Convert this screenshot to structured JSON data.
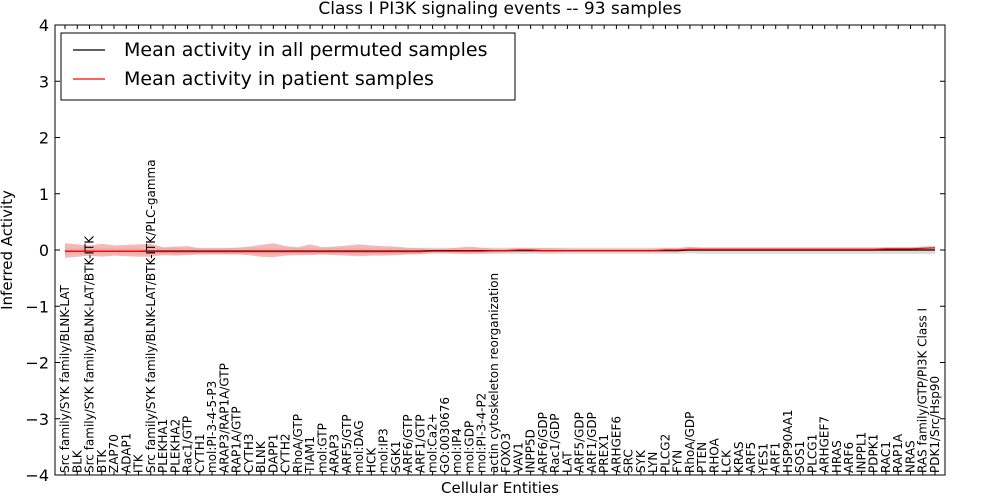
{
  "chart_data": {
    "type": "line",
    "title": "Class I PI3K signaling events -- 93 samples",
    "xlabel": "Cellular Entities",
    "ylabel": "Inferred Activity",
    "ylim": [
      -4,
      4
    ],
    "yticks": [
      -4,
      -3,
      -2,
      -1,
      0,
      1,
      2,
      3,
      4
    ],
    "ytick_labels": [
      "−4",
      "−3",
      "−2",
      "−1",
      "0",
      "1",
      "2",
      "3",
      "4"
    ],
    "grid": false,
    "legend_position": "top-left",
    "categories": [
      "Src family/SYK family/BLNK-LAT",
      "BLK",
      "Src family/SYK family/BLNK-LAT/BTK-ITK",
      "BTK",
      "ZAP70",
      "ADAP1",
      "ITK",
      "Src family/SYK family/BLNK-LAT/BTK-ITK/PLC-gamma",
      "PLEKHA1",
      "PLEKHA2",
      "Rac1/GTP",
      "CYTH1",
      "mol:PI-3-4-5-P3",
      "ARAP3/RAP1A/GTP",
      "RAP1A/GTP",
      "CYTH3",
      "BLNK",
      "DAPP1",
      "CYTH2",
      "RhoA/GTP",
      "TIAM1",
      "mol:GTP",
      "ARAP3",
      "ARF5/GTP",
      "mol:DAG",
      "HCK",
      "mol:IP3",
      "SGK1",
      "ARF6/GTP",
      "ARF1/GTP",
      "mol:Ca2+",
      "GO:0030676",
      "mol:IP4",
      "mol:GDP",
      "mol:PI-3-4-P2",
      "actin cytoskeleton reorganization",
      "FOXO3",
      "VAV1",
      "INPP5D",
      "ARF6/GDP",
      "Rac1/GDP",
      "LAT",
      "ARF5/GDP",
      "ARF1/GDP",
      "PREX1",
      "ARHGEF6",
      "SRC",
      "SYK",
      "LYN",
      "PLCG2",
      "FYN",
      "RhoA/GDP",
      "PTEN",
      "RHOA",
      "LCK",
      "KRAS",
      "ARF5",
      "YES1",
      "ARF1",
      "HSP90AA1",
      "SOS1",
      "PLCG1",
      "ARHGEF7",
      "HRAS",
      "ARF6",
      "INPPL1",
      "PDPK1",
      "RAC1",
      "RAP1A",
      "NRAS",
      "RAS family/GTP/PI3K Class I",
      "PDK1/Src/Hsp90"
    ],
    "series": [
      {
        "name": "Mean activity in all permuted samples",
        "color": "#000000",
        "band_color": "#d3d3d3",
        "values": [
          -0.02,
          -0.02,
          -0.02,
          -0.02,
          -0.02,
          -0.02,
          -0.02,
          -0.02,
          -0.02,
          -0.02,
          -0.02,
          -0.02,
          -0.02,
          -0.02,
          -0.02,
          -0.02,
          -0.02,
          -0.02,
          -0.02,
          -0.02,
          -0.02,
          -0.02,
          -0.02,
          -0.02,
          -0.02,
          -0.02,
          -0.02,
          -0.02,
          -0.02,
          -0.02,
          -0.01,
          -0.01,
          -0.01,
          -0.01,
          -0.01,
          -0.01,
          -0.01,
          -0.01,
          -0.01,
          -0.01,
          -0.01,
          -0.01,
          -0.01,
          -0.01,
          -0.01,
          -0.01,
          -0.01,
          -0.01,
          -0.01,
          -0.01,
          -0.01,
          0.0,
          0.0,
          0.0,
          0.0,
          0.0,
          0.0,
          0.0,
          0.0,
          0.0,
          0.0,
          0.0,
          0.0,
          0.0,
          0.0,
          0.0,
          0.0,
          0.0,
          0.0,
          0.0,
          0.0,
          0.0
        ],
        "lower": [
          -0.08,
          -0.08,
          -0.08,
          -0.08,
          -0.08,
          -0.08,
          -0.08,
          -0.08,
          -0.08,
          -0.08,
          -0.08,
          -0.08,
          -0.08,
          -0.08,
          -0.08,
          -0.08,
          -0.08,
          -0.08,
          -0.08,
          -0.08,
          -0.08,
          -0.08,
          -0.08,
          -0.08,
          -0.08,
          -0.08,
          -0.08,
          -0.08,
          -0.08,
          -0.08,
          -0.07,
          -0.07,
          -0.07,
          -0.07,
          -0.07,
          -0.07,
          -0.07,
          -0.07,
          -0.07,
          -0.07,
          -0.07,
          -0.07,
          -0.07,
          -0.07,
          -0.07,
          -0.07,
          -0.07,
          -0.07,
          -0.07,
          -0.07,
          -0.07,
          -0.06,
          -0.07,
          -0.07,
          -0.07,
          -0.07,
          -0.07,
          -0.07,
          -0.07,
          -0.07,
          -0.07,
          -0.07,
          -0.07,
          -0.07,
          -0.07,
          -0.07,
          -0.07,
          -0.07,
          -0.07,
          -0.07,
          -0.07,
          -0.07
        ],
        "upper": [
          0.04,
          0.04,
          0.04,
          0.04,
          0.04,
          0.04,
          0.04,
          0.04,
          0.04,
          0.04,
          0.04,
          0.04,
          0.04,
          0.04,
          0.04,
          0.04,
          0.04,
          0.04,
          0.04,
          0.04,
          0.04,
          0.04,
          0.04,
          0.04,
          0.04,
          0.04,
          0.04,
          0.04,
          0.04,
          0.04,
          0.04,
          0.04,
          0.04,
          0.04,
          0.04,
          0.04,
          0.04,
          0.04,
          0.04,
          0.04,
          0.04,
          0.04,
          0.04,
          0.04,
          0.04,
          0.04,
          0.04,
          0.04,
          0.04,
          0.04,
          0.04,
          0.05,
          0.05,
          0.05,
          0.05,
          0.05,
          0.05,
          0.05,
          0.05,
          0.05,
          0.05,
          0.05,
          0.05,
          0.05,
          0.05,
          0.05,
          0.05,
          0.05,
          0.05,
          0.05,
          0.05,
          0.05
        ]
      },
      {
        "name": "Mean activity in patient samples",
        "color": "#ff0000",
        "band_color": "#f4a0a0",
        "values": [
          -0.02,
          -0.02,
          -0.02,
          -0.02,
          -0.02,
          -0.02,
          -0.02,
          -0.03,
          -0.03,
          -0.03,
          -0.03,
          -0.03,
          -0.03,
          -0.03,
          -0.03,
          -0.03,
          -0.03,
          -0.03,
          -0.03,
          -0.03,
          -0.03,
          -0.03,
          -0.03,
          -0.03,
          -0.03,
          -0.03,
          -0.03,
          -0.03,
          -0.03,
          -0.03,
          -0.02,
          -0.02,
          -0.02,
          -0.02,
          -0.02,
          -0.01,
          -0.01,
          0.0,
          0.0,
          -0.01,
          -0.01,
          -0.01,
          -0.01,
          -0.01,
          -0.01,
          -0.01,
          -0.01,
          -0.01,
          -0.01,
          0.0,
          0.0,
          0.01,
          0.01,
          0.01,
          0.01,
          0.01,
          0.01,
          0.01,
          0.01,
          0.01,
          0.01,
          0.01,
          0.01,
          0.01,
          0.01,
          0.01,
          0.01,
          0.02,
          0.02,
          0.02,
          0.03,
          0.04
        ],
        "lower": [
          -0.14,
          -0.12,
          -0.1,
          -0.12,
          -0.1,
          -0.11,
          -0.12,
          -0.12,
          -0.09,
          -0.1,
          -0.09,
          -0.08,
          -0.08,
          -0.08,
          -0.08,
          -0.09,
          -0.12,
          -0.13,
          -0.1,
          -0.09,
          -0.09,
          -0.08,
          -0.09,
          -0.1,
          -0.11,
          -0.1,
          -0.1,
          -0.09,
          -0.08,
          -0.07,
          -0.05,
          -0.05,
          -0.06,
          -0.07,
          -0.06,
          -0.05,
          -0.04,
          -0.03,
          -0.03,
          -0.04,
          -0.04,
          -0.03,
          -0.03,
          -0.03,
          -0.03,
          -0.03,
          -0.03,
          -0.03,
          -0.03,
          -0.03,
          -0.03,
          -0.02,
          -0.02,
          -0.02,
          -0.02,
          -0.02,
          -0.02,
          -0.02,
          -0.02,
          -0.02,
          -0.02,
          -0.02,
          -0.02,
          -0.02,
          -0.02,
          -0.02,
          -0.02,
          -0.01,
          -0.01,
          -0.01,
          0.0,
          0.01
        ],
        "upper": [
          0.12,
          0.1,
          0.08,
          0.11,
          0.08,
          0.09,
          0.1,
          0.11,
          0.05,
          0.06,
          0.07,
          0.03,
          0.03,
          0.03,
          0.04,
          0.06,
          0.09,
          0.12,
          0.07,
          0.05,
          0.1,
          0.05,
          0.06,
          0.08,
          0.1,
          0.08,
          0.07,
          0.06,
          0.04,
          0.03,
          0.02,
          0.02,
          0.04,
          0.06,
          0.04,
          0.02,
          0.02,
          0.03,
          0.03,
          0.03,
          0.03,
          0.02,
          0.02,
          0.02,
          0.02,
          0.02,
          0.02,
          0.02,
          0.02,
          0.03,
          0.03,
          0.06,
          0.04,
          0.04,
          0.04,
          0.04,
          0.04,
          0.04,
          0.04,
          0.04,
          0.04,
          0.04,
          0.04,
          0.04,
          0.04,
          0.04,
          0.04,
          0.05,
          0.05,
          0.05,
          0.06,
          0.07
        ]
      }
    ]
  }
}
